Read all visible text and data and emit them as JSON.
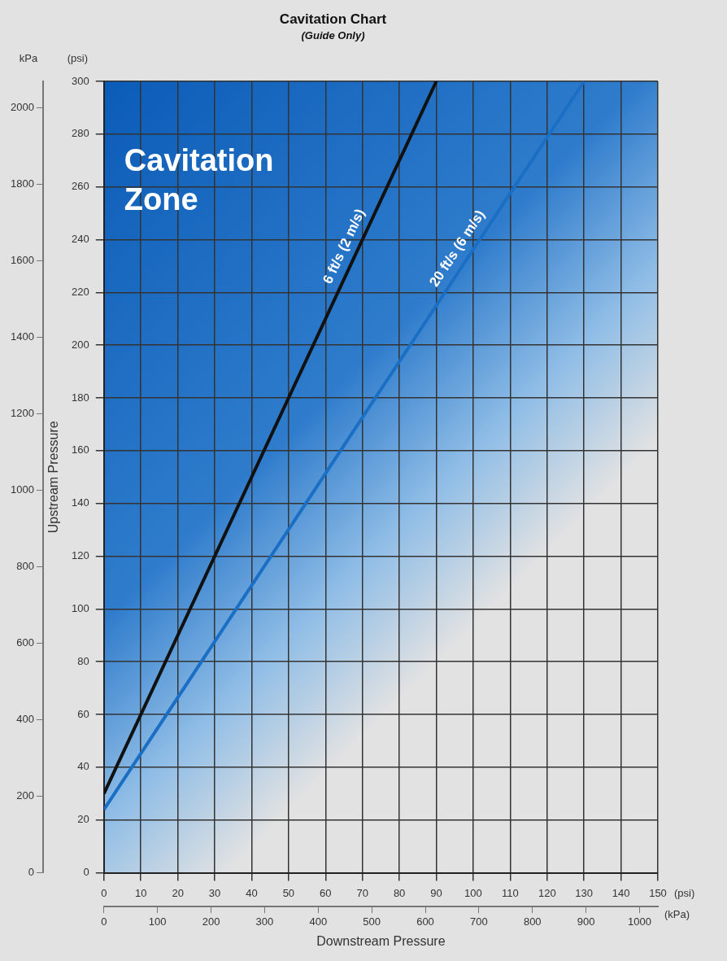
{
  "chart_data": {
    "type": "line",
    "title": "Cavitation Chart",
    "subtitle": "(Guide Only)",
    "xlabel": "Downstream Pressure",
    "ylabel": "Upstream Pressure",
    "y2label": "kPa",
    "x2label": "(kPa)",
    "annotations": [
      "Cavitation Zone",
      "(psi)",
      "(psi)"
    ],
    "series": [
      {
        "name": "6 ft/s (2 m/s)",
        "color": "#111111",
        "x": [
          0,
          90
        ],
        "values": [
          30,
          300
        ]
      },
      {
        "name": "20 ft/s (6 m/s)",
        "color": "#1a6fc4",
        "x": [
          0,
          130
        ],
        "values": [
          24,
          300
        ]
      }
    ],
    "xlim": [
      0,
      150
    ],
    "xticks": [
      0,
      10,
      20,
      30,
      40,
      50,
      60,
      70,
      80,
      90,
      100,
      110,
      120,
      130,
      140,
      150
    ],
    "x2lim": [
      0,
      1034.2
    ],
    "x2ticks": [
      0,
      100,
      200,
      300,
      400,
      500,
      600,
      700,
      800,
      900,
      1000
    ],
    "ylim": [
      0,
      300
    ],
    "yticks": [
      0,
      20,
      40,
      60,
      80,
      100,
      120,
      140,
      160,
      180,
      200,
      220,
      240,
      260,
      280,
      300
    ],
    "y2lim": [
      0,
      2068.4
    ],
    "y2ticks": [
      0,
      200,
      400,
      600,
      800,
      1000,
      1200,
      1400,
      1600,
      1800,
      2000
    ],
    "grid": true,
    "legend": false,
    "marker": "none",
    "line_style": "solid"
  }
}
